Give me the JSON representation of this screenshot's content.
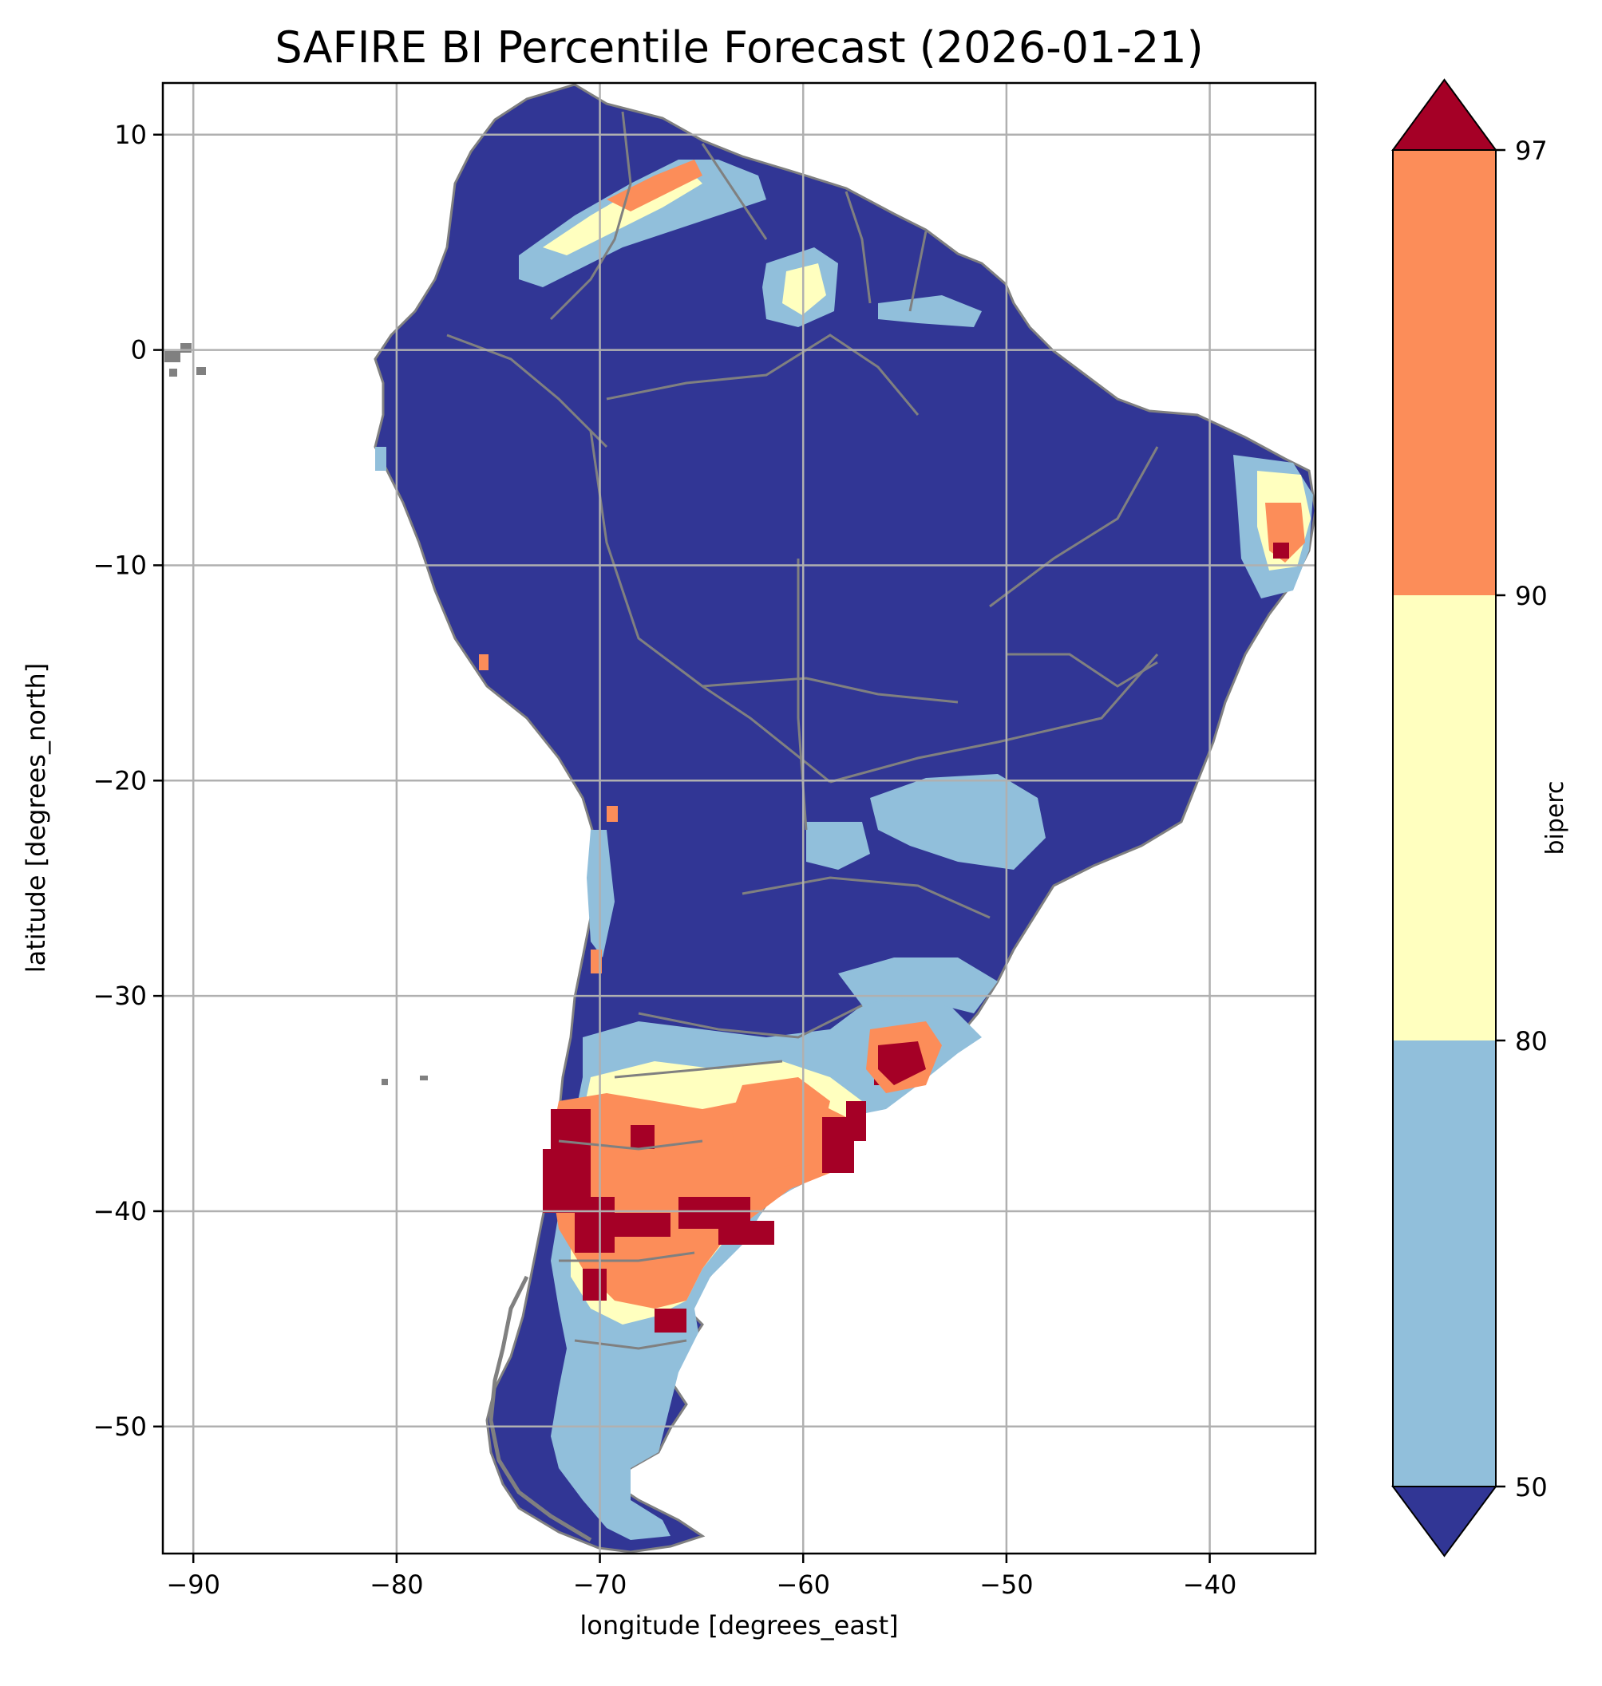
{
  "title": "SAFIRE BI Percentile Forecast (2026-01-21)",
  "xlabel": "longitude [degrees_east]",
  "ylabel": "latitude [degrees_north]",
  "xlim": [
    -91.5,
    -34.8
  ],
  "ylim": [
    -55.9,
    12.4
  ],
  "xticks": [
    {
      "value": -90,
      "label": "−90"
    },
    {
      "value": -80,
      "label": "−80"
    },
    {
      "value": -70,
      "label": "−70"
    },
    {
      "value": -60,
      "label": "−60"
    },
    {
      "value": -50,
      "label": "−50"
    },
    {
      "value": -40,
      "label": "−40"
    }
  ],
  "yticks": [
    {
      "value": 10,
      "label": "10"
    },
    {
      "value": 0,
      "label": "0"
    },
    {
      "value": -10,
      "label": "−10"
    },
    {
      "value": -20,
      "label": "−20"
    },
    {
      "value": -30,
      "label": "−30"
    },
    {
      "value": -40,
      "label": "−40"
    },
    {
      "value": -50,
      "label": "−50"
    }
  ],
  "grid": true,
  "colorbar": {
    "label": "biperc",
    "ticks": [
      "50",
      "80",
      "90",
      "97"
    ],
    "bins": [
      {
        "range": "<50",
        "color": "#313695"
      },
      {
        "range": "50-80",
        "color": "#91bfdb"
      },
      {
        "range": "80-90",
        "color": "#ffffbf"
      },
      {
        "range": "90-97",
        "color": "#fc8d59"
      },
      {
        "range": ">97",
        "color": "#a50026"
      }
    ],
    "extend": "both"
  },
  "colors": {
    "border": "#808080",
    "grid": "#b0b0b0"
  }
}
